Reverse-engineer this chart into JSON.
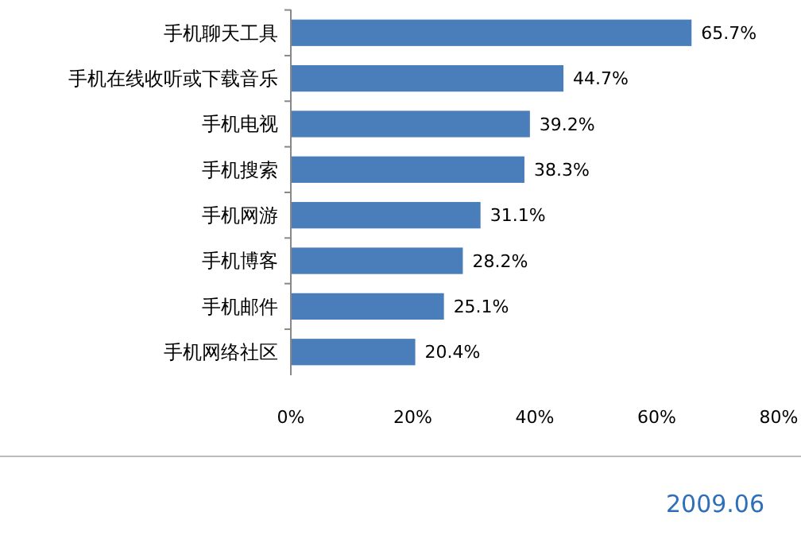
{
  "chart_data": {
    "type": "bar",
    "orientation": "horizontal",
    "categories": [
      "手机聊天工具",
      "手机在线收听或下载音乐",
      "手机电视",
      "手机搜索",
      "手机网游",
      "手机博客",
      "手机邮件",
      "手机网络社区"
    ],
    "values": [
      65.7,
      44.7,
      39.2,
      38.3,
      31.1,
      28.2,
      25.1,
      20.4
    ],
    "value_labels": [
      "65.7%",
      "44.7%",
      "39.2%",
      "38.3%",
      "31.1%",
      "28.2%",
      "25.1%",
      "20.4%"
    ],
    "color": "#4a7ebb",
    "xlim": [
      0,
      80
    ],
    "xticks": [
      {
        "value": 0,
        "label": "0%"
      },
      {
        "value": 20,
        "label": "20%"
      },
      {
        "value": 40,
        "label": "40%"
      },
      {
        "value": 60,
        "label": "60%"
      },
      {
        "value": 80,
        "label": "80%"
      }
    ],
    "grid": false,
    "annotations": [
      "2009.06"
    ]
  }
}
